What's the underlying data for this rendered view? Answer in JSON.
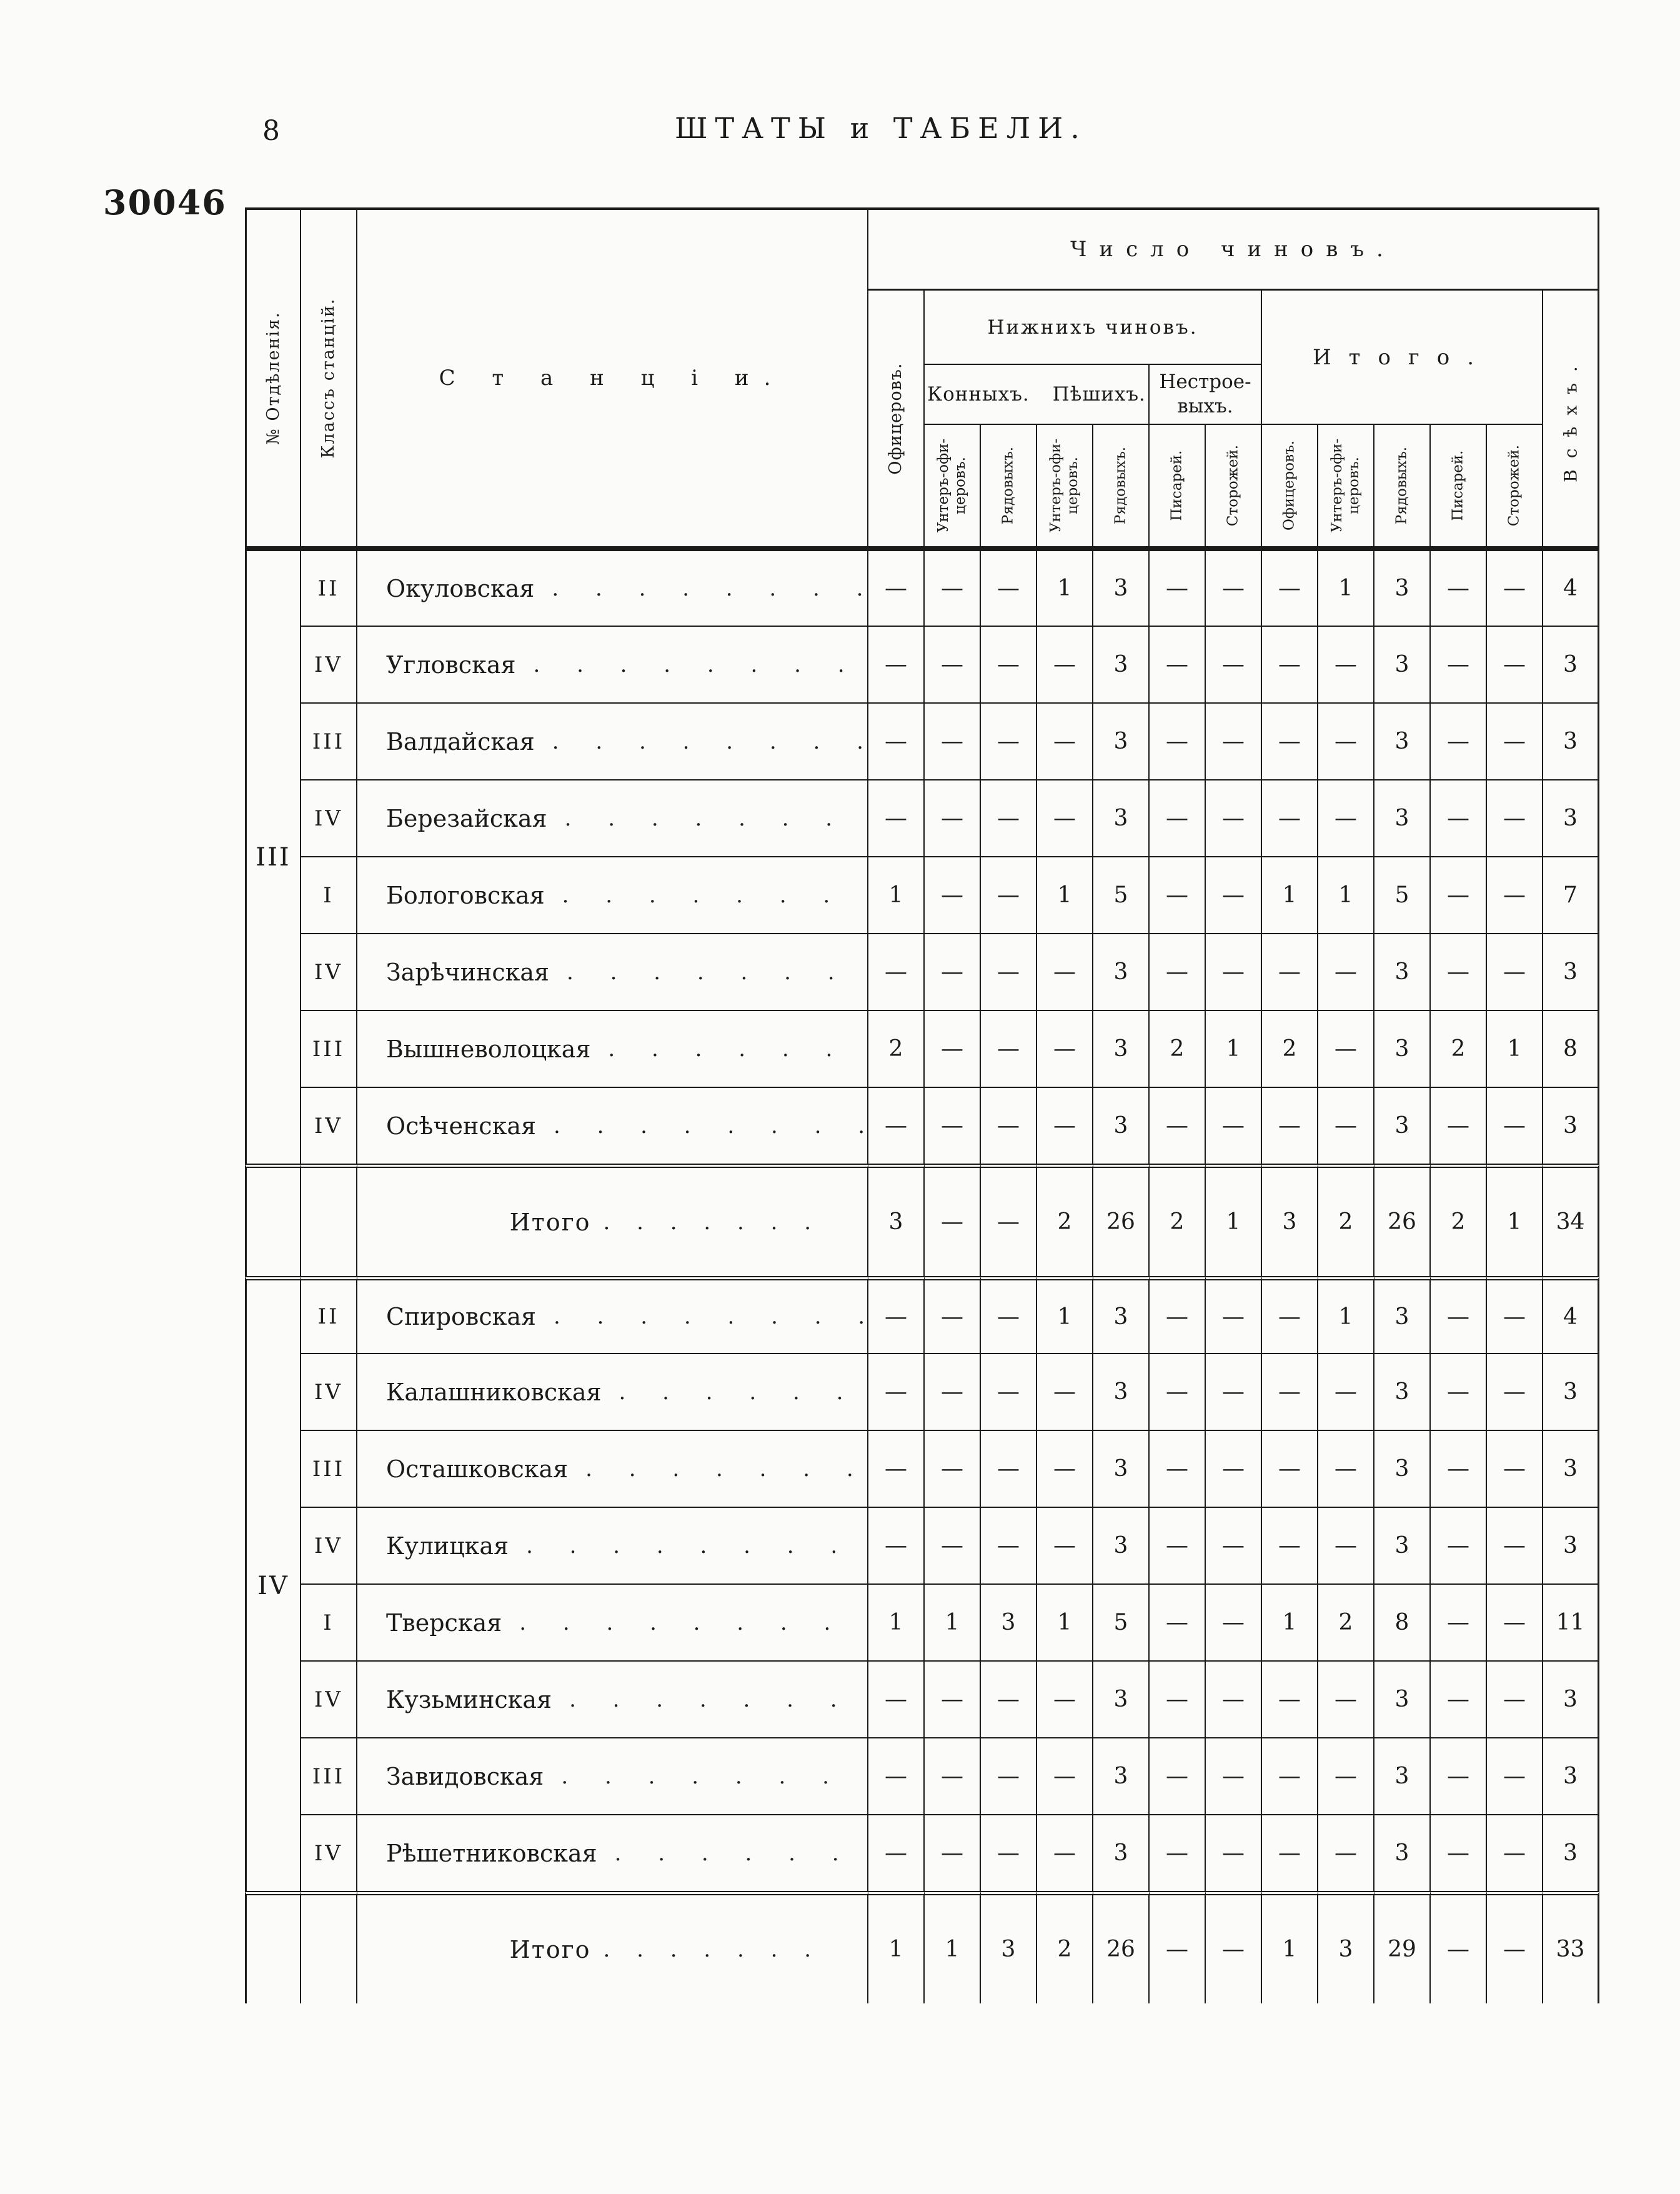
{
  "page": {
    "page_number": "8",
    "running_title": "ШТАТЫ и ТАБЕЛИ.",
    "doc_number": "30046"
  },
  "table": {
    "headers": {
      "otdelenie": "№ Отдѣленія.",
      "klass": "Классъ станцій.",
      "stantsii": "С т а н ц і и.",
      "chislo_chinov": "Число чиновъ.",
      "nizhnikh_chinov": "Нижнихъ чиновъ.",
      "konnykh_peshikh": "Конныхъ. Пѣшихъ.",
      "nestroevykh": "Нестрое- выхъ.",
      "itogo": "Итого.",
      "vsekh": "Всѣхъ.",
      "officers": "Офицеровъ.",
      "sub": [
        "Унтеръ-офи- церовъ.",
        "Рядовыхъ.",
        "Унтеръ-офи- церовъ.",
        "Рядовыхъ.",
        "Писарей.",
        "Сторожей.",
        "Офицеровъ.",
        "Унтеръ-офи- церовъ.",
        "Рядовыхъ.",
        "Писарей.",
        "Сторожей."
      ]
    },
    "itogo_label": "Итого",
    "sections": [
      {
        "number": "III",
        "rows": [
          {
            "klass": "II",
            "name": "Окуловская",
            "values": [
              "—",
              "—",
              "—",
              "1",
              "3",
              "—",
              "—",
              "—",
              "1",
              "3",
              "—",
              "—",
              "4"
            ]
          },
          {
            "klass": "IV",
            "name": "Угловская",
            "values": [
              "—",
              "—",
              "—",
              "—",
              "3",
              "—",
              "—",
              "—",
              "—",
              "3",
              "—",
              "—",
              "3"
            ]
          },
          {
            "klass": "III",
            "name": "Валдайская",
            "values": [
              "—",
              "—",
              "—",
              "—",
              "3",
              "—",
              "—",
              "—",
              "—",
              "3",
              "—",
              "—",
              "3"
            ]
          },
          {
            "klass": "IV",
            "name": "Березайская",
            "values": [
              "—",
              "—",
              "—",
              "—",
              "3",
              "—",
              "—",
              "—",
              "—",
              "3",
              "—",
              "—",
              "3"
            ]
          },
          {
            "klass": "I",
            "name": "Бологовская",
            "values": [
              "1",
              "—",
              "—",
              "1",
              "5",
              "—",
              "—",
              "1",
              "1",
              "5",
              "—",
              "—",
              "7"
            ]
          },
          {
            "klass": "IV",
            "name": "Зарѣчинская",
            "values": [
              "—",
              "—",
              "—",
              "—",
              "3",
              "—",
              "—",
              "—",
              "—",
              "3",
              "—",
              "—",
              "3"
            ]
          },
          {
            "klass": "III",
            "name": "Вышневолоцкая",
            "values": [
              "2",
              "—",
              "—",
              "—",
              "3",
              "2",
              "1",
              "2",
              "—",
              "3",
              "2",
              "1",
              "8"
            ]
          },
          {
            "klass": "IV",
            "name": "Осѣченская",
            "values": [
              "—",
              "—",
              "—",
              "—",
              "3",
              "—",
              "—",
              "—",
              "—",
              "3",
              "—",
              "—",
              "3"
            ]
          }
        ],
        "itogo": [
          "3",
          "—",
          "—",
          "2",
          "26",
          "2",
          "1",
          "3",
          "2",
          "26",
          "2",
          "1",
          "34"
        ]
      },
      {
        "number": "IV",
        "rows": [
          {
            "klass": "II",
            "name": "Спировская",
            "values": [
              "—",
              "—",
              "—",
              "1",
              "3",
              "—",
              "—",
              "—",
              "1",
              "3",
              "—",
              "—",
              "4"
            ]
          },
          {
            "klass": "IV",
            "name": "Калашниковская",
            "values": [
              "—",
              "—",
              "—",
              "—",
              "3",
              "—",
              "—",
              "—",
              "—",
              "3",
              "—",
              "—",
              "3"
            ]
          },
          {
            "klass": "III",
            "name": "Осташковская",
            "values": [
              "—",
              "—",
              "—",
              "—",
              "3",
              "—",
              "—",
              "—",
              "—",
              "3",
              "—",
              "—",
              "3"
            ]
          },
          {
            "klass": "IV",
            "name": "Кулицкая",
            "values": [
              "—",
              "—",
              "—",
              "—",
              "3",
              "—",
              "—",
              "—",
              "—",
              "3",
              "—",
              "—",
              "3"
            ]
          },
          {
            "klass": "I",
            "name": "Тверская",
            "values": [
              "1",
              "1",
              "3",
              "1",
              "5",
              "—",
              "—",
              "1",
              "2",
              "8",
              "—",
              "—",
              "11"
            ]
          },
          {
            "klass": "IV",
            "name": "Кузьминская",
            "values": [
              "—",
              "—",
              "—",
              "—",
              "3",
              "—",
              "—",
              "—",
              "—",
              "3",
              "—",
              "—",
              "3"
            ]
          },
          {
            "klass": "III",
            "name": "Завидовская",
            "values": [
              "—",
              "—",
              "—",
              "—",
              "3",
              "—",
              "—",
              "—",
              "—",
              "3",
              "—",
              "—",
              "3"
            ]
          },
          {
            "klass": "IV",
            "name": "Рѣшетниковская",
            "values": [
              "—",
              "—",
              "—",
              "—",
              "3",
              "—",
              "—",
              "—",
              "—",
              "3",
              "—",
              "—",
              "3"
            ]
          }
        ],
        "itogo": [
          "1",
          "1",
          "3",
          "2",
          "26",
          "—",
          "—",
          "1",
          "3",
          "29",
          "—",
          "—",
          "33"
        ]
      }
    ]
  }
}
